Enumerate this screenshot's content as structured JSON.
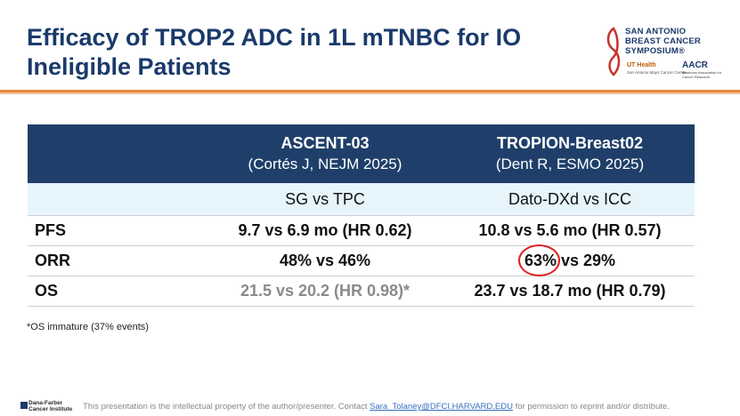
{
  "slide": {
    "title": "Efficacy of TROP2 ADC in 1L mTNBC for IO Ineligible Patients"
  },
  "logo": {
    "line1": "SAN ANTONIO",
    "line2": "BREAST CANCER",
    "line3": "SYMPOSIUM®",
    "ut": "UT Health",
    "ut_sub": "San Antonio Mays Cancer Center",
    "aacr": "AACR",
    "aacr_sub": "American Association for Cancer Research"
  },
  "table": {
    "columns": [
      {
        "title": "ASCENT-03",
        "citation": "(Cortés J, NEJM 2025)",
        "comparison": "SG vs TPC"
      },
      {
        "title": "TROPION-Breast02",
        "citation": "(Dent R, ESMO 2025)",
        "comparison": "Dato-DXd vs ICC"
      }
    ],
    "rows": [
      {
        "label": "PFS",
        "ascent": "9.7 vs 6.9 mo (HR 0.62)",
        "tropion": "10.8 vs 5.6 mo (HR 0.57)"
      },
      {
        "label": "ORR",
        "ascent": "48% vs 46%",
        "tropion_highlight": "63%",
        "tropion_rest": " vs 29%"
      },
      {
        "label": "OS",
        "ascent": "21.5 vs 20.2 (HR 0.98)*",
        "tropion": "23.7 vs 18.7 mo (HR 0.79)"
      }
    ]
  },
  "footnote": "*OS immature (37% events)",
  "footer": {
    "org_line1": "Dana-Farber",
    "org_line2": "Cancer Institute",
    "text_before": "This presentation is the intellectual property of the author/presenter. Contact ",
    "email": "Sara_Tolaney@DFCI.HARVARD.EDU",
    "text_after": " for permission to reprint and/or distribute."
  },
  "colors": {
    "title": "#1a3a6b",
    "header_bg": "#1f3f6a",
    "subheader_bg": "#e6f5fb",
    "rule": "#e8893f",
    "highlight_circle": "#e02020"
  }
}
